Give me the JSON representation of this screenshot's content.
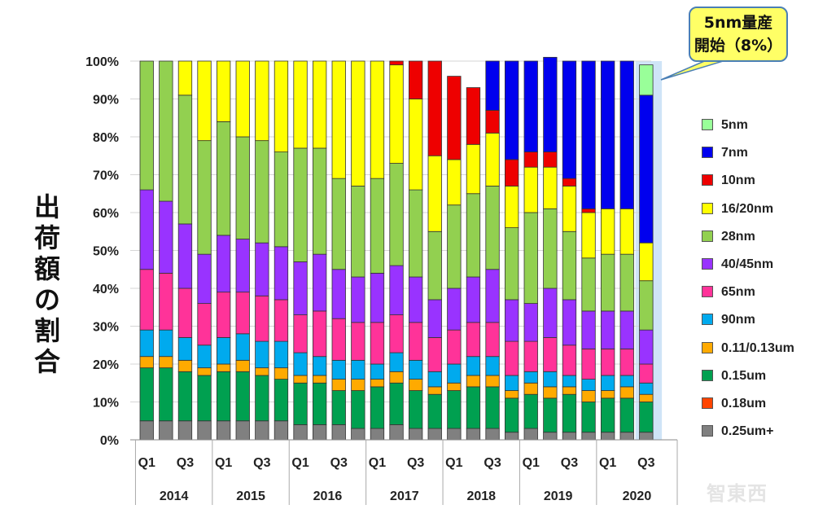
{
  "chart_data": {
    "type": "bar",
    "stacked": true,
    "ylabel": "出荷額の割合",
    "ylim": [
      0,
      100
    ],
    "yticks": [
      "0%",
      "10%",
      "20%",
      "30%",
      "40%",
      "50%",
      "60%",
      "70%",
      "80%",
      "90%",
      "100%"
    ],
    "years": [
      "2014",
      "2015",
      "2016",
      "2017",
      "2018",
      "2019",
      "2020"
    ],
    "quarter_labels": [
      "Q1",
      "Q3"
    ],
    "categories": [
      "2014Q1",
      "2014Q2",
      "2014Q3",
      "2014Q4",
      "2015Q1",
      "2015Q2",
      "2015Q3",
      "2015Q4",
      "2016Q1",
      "2016Q2",
      "2016Q3",
      "2016Q4",
      "2017Q1",
      "2017Q2",
      "2017Q3",
      "2017Q4",
      "2018Q1",
      "2018Q2",
      "2018Q3",
      "2018Q4",
      "2019Q1",
      "2019Q2",
      "2019Q3",
      "2019Q4",
      "2020Q1",
      "2020Q2",
      "2020Q3"
    ],
    "series": [
      {
        "name": "0.25um+",
        "color": "#808080",
        "values": [
          5,
          5,
          5,
          5,
          5,
          5,
          5,
          5,
          4,
          4,
          4,
          3,
          3,
          4,
          3,
          3,
          3,
          3,
          3,
          2,
          3,
          2,
          2,
          2,
          2,
          2,
          2
        ]
      },
      {
        "name": "0.15um",
        "color": "#00a050",
        "values": [
          14,
          14,
          13,
          12,
          13,
          13,
          12,
          11,
          11,
          11,
          9,
          10,
          11,
          11,
          10,
          9,
          10,
          11,
          11,
          9,
          9,
          9,
          10,
          8,
          9,
          9,
          8
        ]
      },
      {
        "name": "0.18um",
        "color": "#ff4400",
        "values": [
          0,
          0,
          0,
          0,
          0,
          0,
          0,
          0,
          0,
          0,
          0,
          0,
          0,
          0,
          0,
          0,
          0,
          0,
          0,
          0,
          0,
          0,
          0,
          0,
          0,
          0,
          0
        ]
      },
      {
        "name": "0.11/0.13um",
        "color": "#ffaa00",
        "values": [
          3,
          3,
          3,
          2,
          2,
          3,
          2,
          3,
          2,
          2,
          3,
          3,
          2,
          3,
          3,
          2,
          2,
          3,
          3,
          2,
          3,
          3,
          2,
          3,
          2,
          3,
          2
        ]
      },
      {
        "name": "90nm",
        "color": "#00aaee",
        "values": [
          7,
          7,
          6,
          6,
          7,
          7,
          7,
          7,
          6,
          5,
          5,
          5,
          4,
          5,
          5,
          4,
          5,
          5,
          5,
          4,
          3,
          4,
          3,
          3,
          4,
          3,
          3
        ]
      },
      {
        "name": "65nm",
        "color": "#ff3399",
        "values": [
          16,
          15,
          13,
          11,
          12,
          11,
          12,
          11,
          10,
          12,
          11,
          10,
          11,
          10,
          10,
          9,
          9,
          9,
          9,
          9,
          8,
          9,
          8,
          8,
          7,
          7,
          5
        ]
      },
      {
        "name": "40/45nm",
        "color": "#9933ff",
        "values": [
          21,
          19,
          17,
          13,
          15,
          14,
          14,
          14,
          14,
          15,
          13,
          12,
          13,
          13,
          12,
          10,
          11,
          12,
          14,
          11,
          10,
          13,
          12,
          10,
          10,
          10,
          9
        ]
      },
      {
        "name": "28nm",
        "color": "#92d050",
        "values": [
          34,
          37,
          34,
          30,
          30,
          27,
          27,
          25,
          30,
          28,
          24,
          24,
          25,
          27,
          23,
          18,
          22,
          22,
          22,
          19,
          24,
          21,
          18,
          14,
          15,
          15,
          13
        ]
      },
      {
        "name": "16/20nm",
        "color": "#ffff00",
        "values": [
          0,
          0,
          9,
          21,
          16,
          20,
          21,
          24,
          23,
          23,
          31,
          33,
          31,
          26,
          24,
          20,
          12,
          13,
          14,
          11,
          12,
          11,
          12,
          12,
          12,
          12,
          10
        ]
      },
      {
        "name": "10nm",
        "color": "#ee0000",
        "values": [
          0,
          0,
          0,
          0,
          0,
          0,
          0,
          0,
          0,
          0,
          0,
          0,
          0,
          1,
          10,
          25,
          22,
          15,
          6,
          7,
          4,
          4,
          2,
          1,
          0,
          0,
          0
        ]
      },
      {
        "name": "7nm",
        "color": "#0000ee",
        "values": [
          0,
          0,
          0,
          0,
          0,
          0,
          0,
          0,
          0,
          0,
          0,
          0,
          0,
          0,
          0,
          0,
          0,
          0,
          13,
          26,
          24,
          25,
          31,
          39,
          39,
          39,
          39
        ]
      },
      {
        "name": "5nm",
        "color": "#99ff99",
        "values": [
          0,
          0,
          0,
          0,
          0,
          0,
          0,
          0,
          0,
          0,
          0,
          0,
          0,
          0,
          0,
          0,
          0,
          0,
          0,
          0,
          0,
          0,
          0,
          0,
          0,
          0,
          8
        ]
      }
    ],
    "legend_order": [
      "5nm",
      "7nm",
      "10nm",
      "16/20nm",
      "28nm",
      "40/45nm",
      "65nm",
      "90nm",
      "0.11/0.13um",
      "0.15um",
      "0.18um",
      "0.25um+"
    ],
    "legend": "right",
    "annotation": {
      "line1": "5nm量産",
      "line2": "開始（8%）",
      "target": "2020Q3 5nm"
    }
  },
  "watermark": "智東西"
}
